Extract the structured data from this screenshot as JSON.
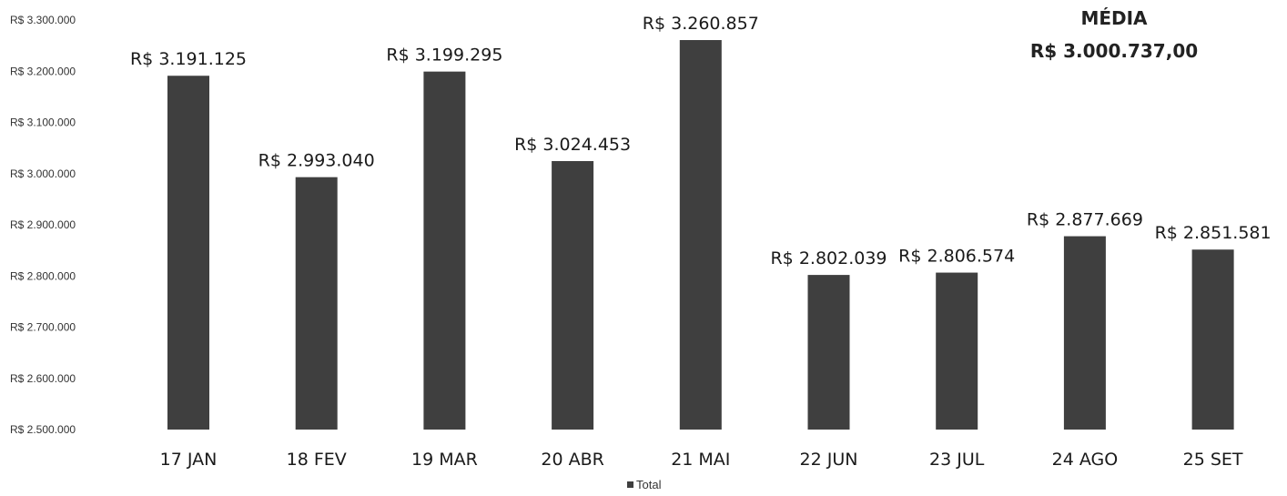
{
  "chart_data": {
    "type": "bar",
    "categories": [
      "17 JAN",
      "18 FEV",
      "19 MAR",
      "20 ABR",
      "21 MAI",
      "22 JUN",
      "23 JUL",
      "24 AGO",
      "25 SET"
    ],
    "series": [
      {
        "name": "Total",
        "values": [
          3191125,
          2993040,
          3199295,
          3024453,
          3260857,
          2802039,
          2806574,
          2877669,
          2851581
        ],
        "labels": [
          "R$ 3.191.125",
          "R$ 2.993.040",
          "R$ 3.199.295",
          "R$ 3.024.453",
          "R$ 3.260.857",
          "R$ 2.802.039",
          "R$ 2.806.574",
          "R$ 2.877.669",
          "R$ 2.851.581"
        ]
      }
    ],
    "ylim": [
      2500000,
      3300000
    ],
    "yticks": [
      2500000,
      2600000,
      2700000,
      2800000,
      2900000,
      3000000,
      3100000,
      3200000,
      3300000
    ],
    "ytick_labels": [
      "R$ 2.500.000",
      "R$ 2.600.000",
      "R$ 2.700.000",
      "R$ 2.800.000",
      "R$ 2.900.000",
      "R$ 3.000.000",
      "R$ 3.100.000",
      "R$ 3.200.000",
      "R$ 3.300.000"
    ],
    "legend": {
      "position": "bottom",
      "entries": [
        "Total"
      ]
    },
    "annotation": {
      "title": "MÉDIA",
      "value": "R$ 3.000.737,00"
    },
    "grid": false,
    "colors": {
      "bar": "#3f3f3f",
      "text": "#1a1a1a"
    }
  }
}
